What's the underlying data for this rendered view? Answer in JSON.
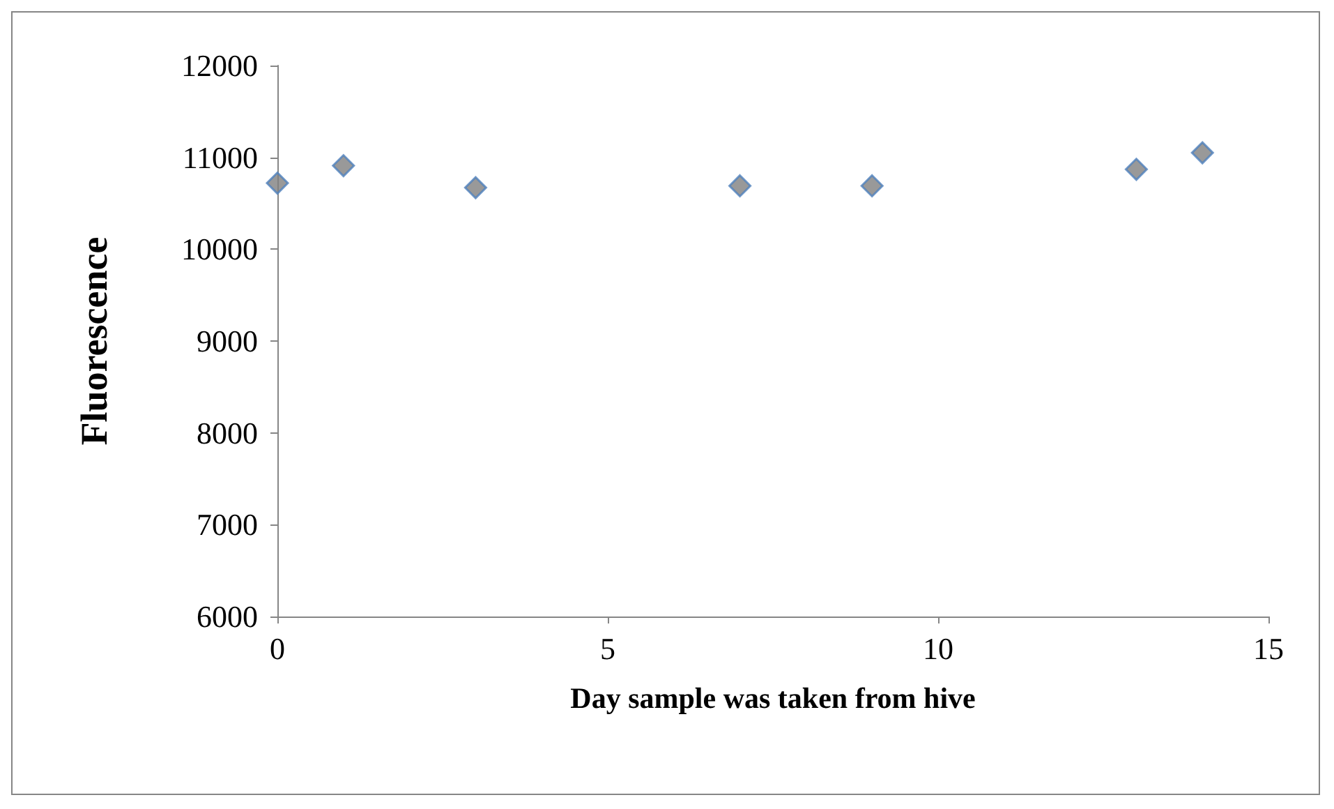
{
  "chart_data": {
    "type": "scatter",
    "xlabel": "Day sample was taken from hive",
    "ylabel": "Fluorescence",
    "x": [
      0,
      1,
      3,
      7,
      9,
      13,
      14
    ],
    "series": [
      {
        "color": "#808080",
        "values": [
          10720,
          10910,
          10670,
          10690,
          10690,
          10870,
          11050
        ]
      }
    ],
    "xlim": [
      0,
      15
    ],
    "xticks": [
      0,
      5,
      10,
      15
    ],
    "ylim": [
      6000,
      12000
    ],
    "yticks": [
      6000,
      7000,
      8000,
      9000,
      10000,
      11000,
      12000
    ],
    "grid": false,
    "marker": "diamond"
  }
}
